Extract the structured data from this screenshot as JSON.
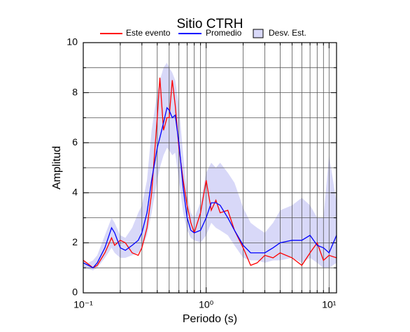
{
  "chart_data": {
    "type": "line",
    "title": "Sitio CTRH",
    "xlabel": "Periodo (s)",
    "ylabel": "Amplitud",
    "xscale": "log",
    "xlim": [
      0.1,
      11.5
    ],
    "ylim": [
      0,
      10
    ],
    "xticks": [
      {
        "value": 0.1,
        "label": "10⁻¹"
      },
      {
        "value": 1,
        "label": "10⁰"
      },
      {
        "value": 10,
        "label": "10¹"
      }
    ],
    "xminorticks": [
      0.2,
      0.3,
      0.4,
      0.5,
      0.6,
      0.7,
      0.8,
      0.9,
      2,
      3,
      4,
      5,
      6,
      7,
      8,
      9
    ],
    "yticks": [
      0,
      2,
      4,
      6,
      8,
      10
    ],
    "yminorticks": [
      1,
      3,
      5,
      7,
      9
    ],
    "grid": true,
    "x": [
      0.1,
      0.11,
      0.12,
      0.13,
      0.15,
      0.17,
      0.18,
      0.2,
      0.22,
      0.25,
      0.28,
      0.3,
      0.33,
      0.36,
      0.4,
      0.42,
      0.45,
      0.48,
      0.5,
      0.53,
      0.56,
      0.6,
      0.65,
      0.7,
      0.75,
      0.8,
      0.9,
      1.0,
      1.1,
      1.2,
      1.3,
      1.5,
      1.7,
      2.0,
      2.3,
      2.6,
      3,
      3.5,
      4,
      5,
      6,
      7,
      8,
      9,
      10,
      11.5
    ],
    "band": {
      "name": "Desv. Est.",
      "color": "#d8d8f8",
      "low": [
        1.0,
        0.95,
        0.9,
        1.0,
        1.4,
        1.8,
        1.6,
        1.4,
        1.4,
        1.5,
        1.6,
        1.8,
        2.3,
        3.2,
        4.5,
        5.0,
        5.5,
        5.8,
        5.7,
        5.5,
        5.6,
        4.5,
        3.2,
        2.5,
        2.2,
        2.1,
        2.0,
        2.3,
        2.8,
        2.6,
        2.5,
        2.3,
        1.9,
        1.4,
        1.3,
        1.3,
        1.2,
        1.3,
        1.3,
        1.4,
        1.2,
        1.4,
        1.2,
        1.0,
        1.0,
        1.2
      ],
      "high": [
        1.3,
        1.2,
        1.3,
        1.5,
        2.3,
        3.0,
        2.8,
        2.3,
        2.2,
        2.6,
        3.2,
        3.5,
        4.5,
        6.5,
        8.0,
        8.5,
        9.0,
        9.2,
        9.0,
        8.8,
        8.5,
        7.5,
        5.5,
        4.0,
        3.2,
        3.0,
        3.6,
        4.8,
        5.2,
        5.0,
        5.2,
        4.8,
        4.4,
        3.4,
        2.8,
        2.6,
        2.4,
        2.8,
        3.3,
        3.5,
        3.8,
        3.5,
        3.0,
        3.0,
        5.5,
        3.6
      ]
    },
    "series": [
      {
        "name": "Este evento",
        "color": "#ff0000",
        "values": [
          1.3,
          1.15,
          1.0,
          1.1,
          1.6,
          2.2,
          1.9,
          2.1,
          2.0,
          1.6,
          1.5,
          1.8,
          2.6,
          4.0,
          7.0,
          8.6,
          6.5,
          7.0,
          7.0,
          8.5,
          7.5,
          5.8,
          4.5,
          3.5,
          2.8,
          2.4,
          3.2,
          4.5,
          3.3,
          3.7,
          3.2,
          3.3,
          2.5,
          1.8,
          1.1,
          1.2,
          1.5,
          1.4,
          1.6,
          1.4,
          1.1,
          1.6,
          2.0,
          1.3,
          1.5,
          1.4
        ]
      },
      {
        "name": "Promedio",
        "color": "#0000ff",
        "values": [
          1.2,
          1.1,
          1.0,
          1.2,
          1.8,
          2.6,
          2.4,
          1.8,
          1.7,
          1.9,
          2.1,
          2.4,
          3.2,
          4.5,
          5.8,
          6.2,
          6.8,
          7.4,
          7.3,
          7.0,
          7.1,
          6.0,
          4.2,
          3.0,
          2.5,
          2.4,
          2.5,
          3.0,
          3.6,
          3.6,
          3.5,
          3.0,
          2.5,
          1.9,
          1.6,
          1.6,
          1.6,
          1.8,
          2.0,
          2.1,
          2.1,
          2.3,
          1.9,
          1.8,
          1.6,
          2.3
        ]
      }
    ]
  }
}
